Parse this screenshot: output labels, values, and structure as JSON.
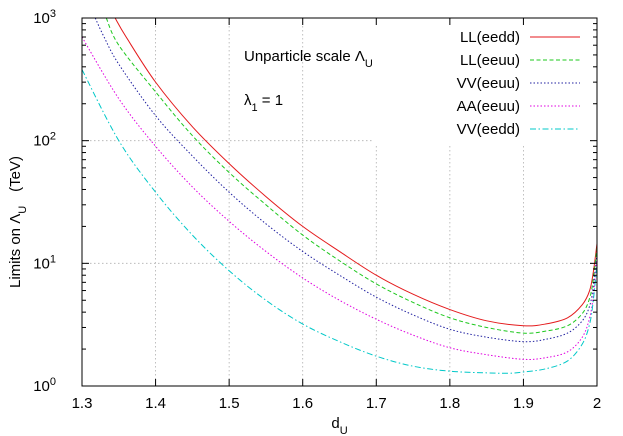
{
  "chart_data": {
    "type": "line",
    "xlabel": "d",
    "xlabel_sub": "U",
    "ylabel": "Limits on Λ",
    "ylabel_sub": "U",
    "ylabel_unit": "(TeV)",
    "xlim": [
      1.3,
      2.0
    ],
    "ylim": [
      1,
      1000
    ],
    "yscale": "log",
    "grid": true,
    "x_ticks": [
      "1.3",
      "1.4",
      "1.5",
      "1.6",
      "1.7",
      "1.8",
      "1.9",
      "2"
    ],
    "y_ticks": [
      {
        "base": "10",
        "exp": "0",
        "value": 1
      },
      {
        "base": "10",
        "exp": "1",
        "value": 10
      },
      {
        "base": "10",
        "exp": "2",
        "value": 100
      },
      {
        "base": "10",
        "exp": "3",
        "value": 1000
      }
    ],
    "annotations": [
      {
        "text": "Unparticle scale Λ",
        "sub": "U"
      },
      {
        "text": "λ",
        "sub": "1",
        "tail": " = 1"
      }
    ],
    "legend_position": "top-right",
    "series": [
      {
        "name": "LL(eedd)",
        "color": "#e41a1c",
        "dash": "solid",
        "x": [
          1.345,
          1.36,
          1.4,
          1.45,
          1.5,
          1.55,
          1.6,
          1.65,
          1.7,
          1.75,
          1.8,
          1.85,
          1.9,
          1.93,
          1.96,
          1.98,
          1.99,
          1.995,
          2.0
        ],
        "y": [
          1000,
          700,
          300,
          130,
          65,
          35,
          20,
          12.5,
          8,
          5.6,
          4.2,
          3.4,
          3.1,
          3.2,
          3.6,
          4.6,
          6.0,
          8.5,
          14.5
        ]
      },
      {
        "name": "LL(eeuu)",
        "color": "#1ec81e",
        "dash": "dashed",
        "x": [
          1.333,
          1.35,
          1.4,
          1.45,
          1.5,
          1.55,
          1.6,
          1.65,
          1.7,
          1.75,
          1.8,
          1.85,
          1.9,
          1.93,
          1.96,
          1.98,
          1.99,
          1.995,
          2.0
        ],
        "y": [
          1000,
          600,
          250,
          110,
          55,
          30,
          17,
          10.5,
          6.8,
          4.8,
          3.6,
          3.0,
          2.7,
          2.8,
          3.1,
          3.9,
          5.2,
          7.5,
          13.5
        ]
      },
      {
        "name": "VV(eeuu)",
        "color": "#2020a0",
        "dash": "dotted",
        "x": [
          1.318,
          1.33,
          1.35,
          1.4,
          1.45,
          1.5,
          1.55,
          1.6,
          1.65,
          1.7,
          1.75,
          1.8,
          1.85,
          1.9,
          1.93,
          1.96,
          1.98,
          1.99,
          1.995,
          2.0
        ],
        "y": [
          1000,
          700,
          420,
          160,
          75,
          38,
          21,
          12.5,
          8,
          5.3,
          3.8,
          2.9,
          2.5,
          2.3,
          2.4,
          2.7,
          3.4,
          4.5,
          6.5,
          12
        ]
      },
      {
        "name": "AA(eeuu)",
        "color": "#e000e0",
        "dash": "dotted",
        "x": [
          1.3,
          1.35,
          1.4,
          1.45,
          1.5,
          1.55,
          1.6,
          1.65,
          1.7,
          1.75,
          1.8,
          1.85,
          1.9,
          1.93,
          1.96,
          1.98,
          1.99,
          1.995,
          2.0
        ],
        "y": [
          700,
          220,
          90,
          42,
          22,
          12.5,
          7.6,
          5.0,
          3.5,
          2.6,
          2.05,
          1.8,
          1.65,
          1.7,
          1.9,
          2.5,
          3.6,
          5.5,
          11
        ]
      },
      {
        "name": "VV(eedd)",
        "color": "#00c8c8",
        "dash": "dashdot",
        "x": [
          1.3,
          1.35,
          1.4,
          1.45,
          1.5,
          1.55,
          1.6,
          1.65,
          1.7,
          1.75,
          1.8,
          1.85,
          1.88,
          1.9,
          1.93,
          1.96,
          1.98,
          1.99,
          1.995,
          2.0
        ],
        "y": [
          380,
          100,
          38,
          17,
          8.7,
          5.0,
          3.2,
          2.3,
          1.75,
          1.45,
          1.32,
          1.28,
          1.27,
          1.3,
          1.38,
          1.6,
          2.2,
          3.2,
          5.0,
          10
        ]
      }
    ]
  }
}
